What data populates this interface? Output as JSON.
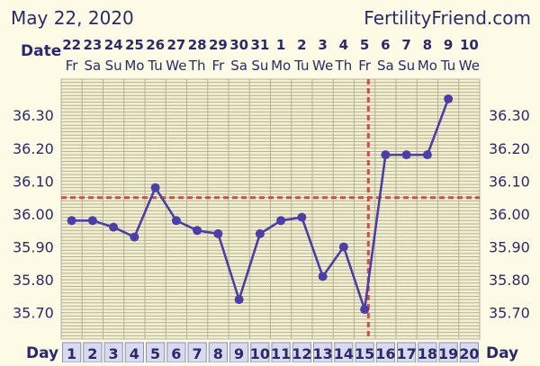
{
  "header": {
    "date": "May 22, 2020",
    "site": "FertilityFriend.com"
  },
  "colors": {
    "background": "#fdfbe6",
    "plot_background": "#f4f0cf",
    "grid": "#b4b09a",
    "line": "#4b3fa6",
    "marker": "#4b3fa6",
    "coverline": "#c8504f",
    "text": "#2a2a6a",
    "day_box_bg": "#d9d9ef",
    "day_box_border": "#9090b8"
  },
  "chart_data": {
    "type": "line",
    "row_labels": {
      "date": "Date",
      "day": "Day"
    },
    "dates": [
      "22",
      "23",
      "24",
      "25",
      "26",
      "27",
      "28",
      "29",
      "30",
      "31",
      "1",
      "2",
      "3",
      "4",
      "5",
      "6",
      "7",
      "8",
      "9",
      "10"
    ],
    "weekdays": [
      "Fr",
      "Sa",
      "Su",
      "Mo",
      "Tu",
      "We",
      "Th",
      "Fr",
      "Sa",
      "Su",
      "Mo",
      "Tu",
      "We",
      "Th",
      "Fr",
      "Sa",
      "Su",
      "Mo",
      "Tu",
      "We"
    ],
    "cycle_days": [
      1,
      2,
      3,
      4,
      5,
      6,
      7,
      8,
      9,
      10,
      11,
      12,
      13,
      14,
      15,
      16,
      17,
      18,
      19,
      20
    ],
    "yticks": [
      "35.70",
      "35.80",
      "35.90",
      "36.00",
      "36.10",
      "36.20",
      "36.30"
    ],
    "ylim": [
      35.62,
      36.41
    ],
    "series": [
      {
        "values": [
          35.98,
          35.98,
          35.96,
          35.93,
          36.08,
          35.98,
          35.95,
          35.94,
          35.74,
          35.94,
          35.98,
          35.99,
          35.81,
          35.9,
          35.71,
          36.18,
          36.18,
          36.18,
          36.35,
          null
        ]
      }
    ],
    "coverline": 36.05,
    "ovulation_day": 15,
    "grid": true
  }
}
